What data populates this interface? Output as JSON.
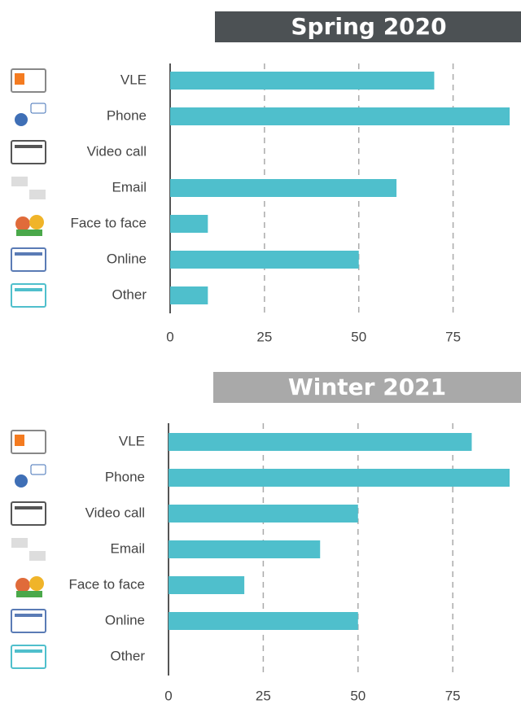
{
  "chart_data": [
    {
      "type": "bar",
      "orientation": "horizontal",
      "title": "Spring 2020",
      "categories": [
        "VLE",
        "Phone",
        "Video call",
        "Email",
        "Face to face",
        "Online",
        "Other"
      ],
      "values": [
        70,
        90,
        0,
        60,
        10,
        50,
        10
      ],
      "color": "#4fbfcc",
      "xlim": [
        0,
        93
      ],
      "xticks": [
        0,
        25,
        50,
        75
      ],
      "grid": true
    },
    {
      "type": "bar",
      "orientation": "horizontal",
      "title": "Winter 2021",
      "categories": [
        "VLE",
        "Phone",
        "Video call",
        "Email",
        "Face to face",
        "Online",
        "Other"
      ],
      "values": [
        80,
        90,
        50,
        40,
        20,
        50,
        0
      ],
      "color": "#4fbfcc",
      "xlim": [
        0,
        93
      ],
      "xticks": [
        0,
        25,
        50,
        75
      ],
      "grid": true
    }
  ]
}
